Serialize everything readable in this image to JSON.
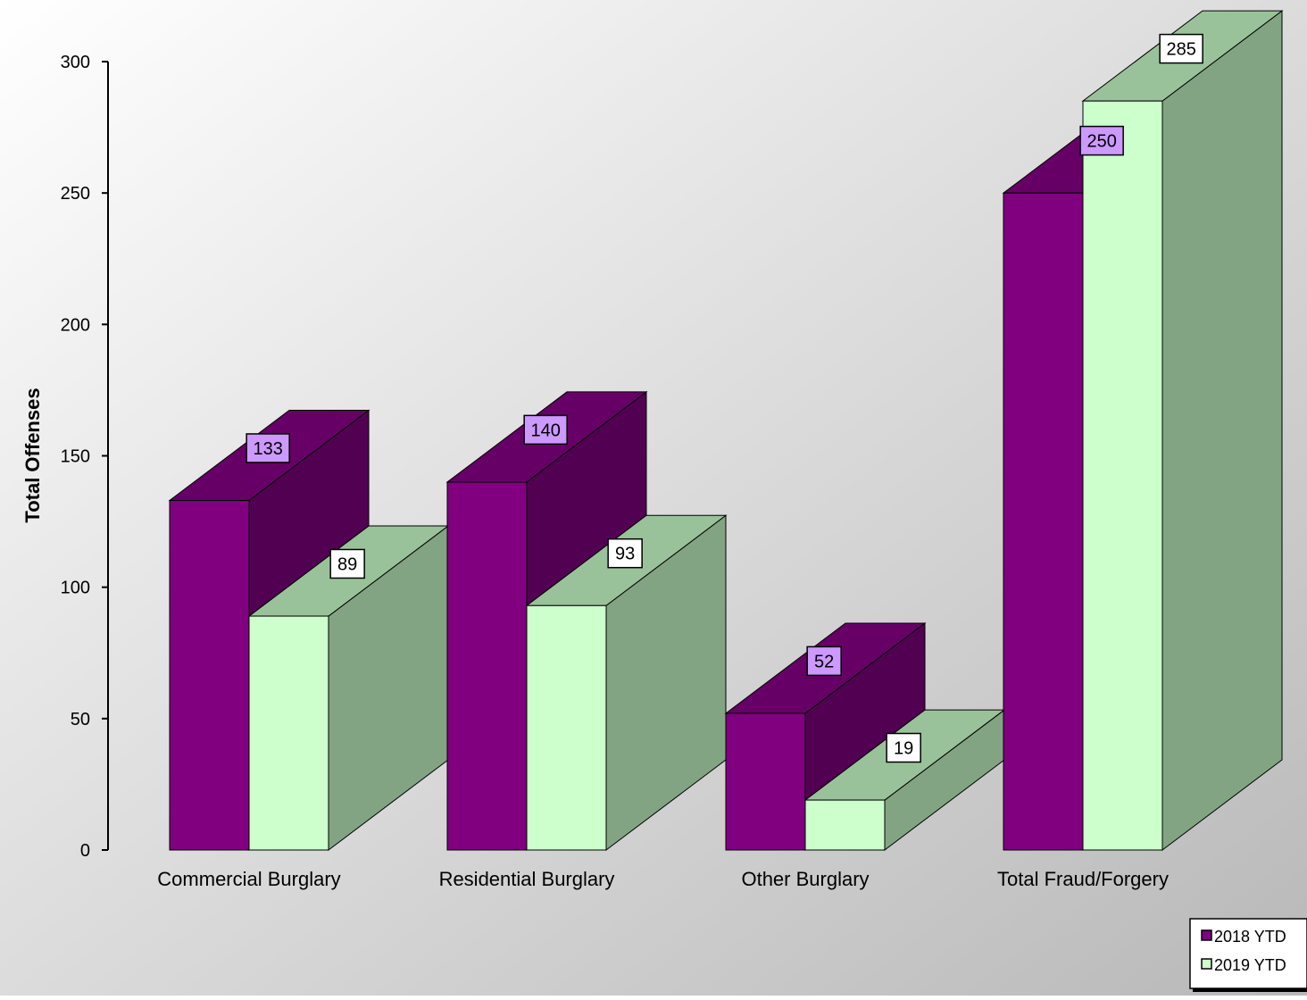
{
  "chart_data": {
    "type": "bar",
    "title": "",
    "xlabel": "",
    "ylabel": "Total Offenses",
    "ylim": [
      0,
      300
    ],
    "yticks": [
      0,
      50,
      100,
      150,
      200,
      250,
      300
    ],
    "categories": [
      "Commercial Burglary",
      "Residential Burglary",
      "Other Burglary",
      "Total Fraud/Forgery"
    ],
    "series": [
      {
        "name": "2018 YTD",
        "values": [
          133,
          140,
          52,
          250
        ],
        "colors": {
          "front": "#800080",
          "top": "#660066",
          "side": "#520052",
          "label_bg": "#cc99ff"
        }
      },
      {
        "name": "2019 YTD",
        "values": [
          89,
          93,
          19,
          285
        ],
        "colors": {
          "front": "#ccffcc",
          "top": "#9ac29a",
          "side": "#82a482",
          "label_bg": "#ffffff"
        }
      }
    ],
    "legend_position": "bottom-right",
    "style": "3d-clustered-column",
    "background": "gradient-gray"
  }
}
